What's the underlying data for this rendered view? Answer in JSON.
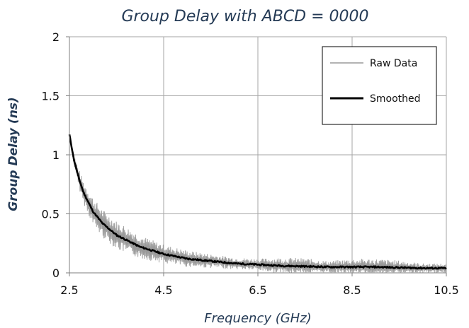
{
  "chart_data": {
    "type": "line",
    "title": "Group Delay with ABCD = 0000",
    "xlabel": "Frequency (GHz)",
    "ylabel": "Group Delay (ns)",
    "xlim": [
      2.5,
      10.5
    ],
    "ylim": [
      0,
      2
    ],
    "xticks": [
      2.5,
      4.5,
      6.5,
      8.5,
      10.5
    ],
    "xtick_labels": [
      "2.5",
      "4.5",
      "6.5",
      "8.5",
      "10.5"
    ],
    "yticks": [
      0,
      0.5,
      1,
      1.5,
      2
    ],
    "ytick_labels": [
      "0",
      "0.5",
      "1",
      "1.5",
      "2"
    ],
    "grid": true,
    "legend_position": "top-right",
    "series": [
      {
        "name": "Raw Data",
        "style": "thin",
        "color": "#9a9a9a",
        "envelope_note": "rapidly oscillating trace around smoothed curve",
        "x": [
          2.5,
          2.7,
          3.0,
          3.3,
          3.6,
          4.0,
          4.5,
          5.0,
          5.5,
          6.0,
          6.5,
          7.0,
          7.5,
          8.0,
          8.5,
          9.0,
          9.5,
          10.0,
          10.5
        ],
        "amplitude": [
          0.02,
          0.08,
          0.12,
          0.12,
          0.12,
          0.1,
          0.08,
          0.07,
          0.06,
          0.05,
          0.05,
          0.07,
          0.07,
          0.05,
          0.07,
          0.07,
          0.06,
          0.04,
          0.04
        ]
      },
      {
        "name": "Smoothed",
        "style": "thick",
        "color": "#000000",
        "x": [
          2.5,
          2.6,
          2.7,
          2.8,
          3.0,
          3.2,
          3.5,
          4.0,
          4.5,
          5.0,
          5.5,
          6.0,
          6.5,
          7.0,
          7.5,
          8.0,
          8.5,
          9.0,
          9.5,
          10.0,
          10.5
        ],
        "y": [
          1.17,
          0.95,
          0.8,
          0.68,
          0.52,
          0.42,
          0.32,
          0.22,
          0.16,
          0.12,
          0.1,
          0.08,
          0.07,
          0.06,
          0.055,
          0.05,
          0.05,
          0.05,
          0.045,
          0.04,
          0.04
        ]
      }
    ]
  }
}
